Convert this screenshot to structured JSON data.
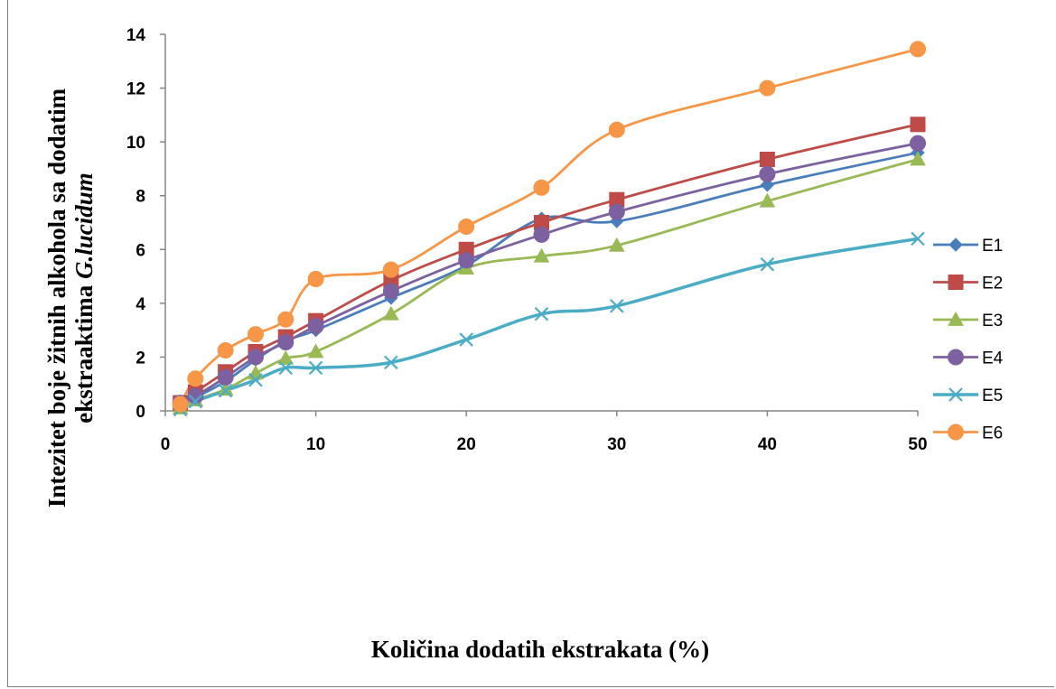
{
  "chart_data": {
    "type": "line",
    "title": "",
    "xlabel": "Količina dodatih ekstrakata (%)",
    "ylabel_line1": "Intezitet boje žitnih alkohola sa dodatim",
    "ylabel_line2_prefix": "ekstraaktima ",
    "ylabel_line2_italic": "G.lucidum",
    "xlim": [
      0,
      50
    ],
    "ylim": [
      0,
      14
    ],
    "xticks": [
      0,
      10,
      20,
      30,
      40,
      50
    ],
    "yticks": [
      0,
      2,
      4,
      6,
      8,
      10,
      12,
      14
    ],
    "grid": false,
    "legend_position": "right",
    "x": [
      1,
      2,
      4,
      6,
      8,
      10,
      15,
      20,
      25,
      30,
      40,
      50
    ],
    "series": [
      {
        "name": "E1",
        "color": "#4a7ebb",
        "marker": "diamond",
        "values": [
          0.3,
          0.5,
          1.1,
          1.9,
          2.6,
          3.0,
          4.2,
          5.4,
          7.15,
          7.05,
          8.4,
          9.6
        ]
      },
      {
        "name": "E2",
        "color": "#be4b48",
        "marker": "square",
        "values": [
          0.3,
          0.7,
          1.45,
          2.2,
          2.75,
          3.35,
          4.85,
          6.0,
          7.0,
          7.85,
          9.35,
          10.65
        ]
      },
      {
        "name": "E3",
        "color": "#98b954",
        "marker": "triangle",
        "values": [
          0.1,
          0.4,
          0.8,
          1.4,
          1.95,
          2.2,
          3.6,
          5.3,
          5.75,
          6.15,
          7.8,
          9.35
        ]
      },
      {
        "name": "E4",
        "color": "#7d60a0",
        "marker": "circle",
        "values": [
          0.3,
          0.55,
          1.25,
          2.0,
          2.55,
          3.15,
          4.45,
          5.6,
          6.55,
          7.4,
          8.8,
          9.95
        ]
      },
      {
        "name": "E5",
        "color": "#4bacc6",
        "marker": "x",
        "values": [
          0.05,
          0.35,
          0.75,
          1.15,
          1.6,
          1.6,
          1.8,
          2.65,
          3.6,
          3.9,
          5.45,
          6.4
        ]
      },
      {
        "name": "E6",
        "color": "#f79646",
        "marker": "circle",
        "values": [
          0.25,
          1.2,
          2.25,
          2.85,
          3.4,
          4.9,
          5.25,
          6.85,
          8.3,
          10.45,
          12.0,
          13.45
        ]
      }
    ]
  }
}
